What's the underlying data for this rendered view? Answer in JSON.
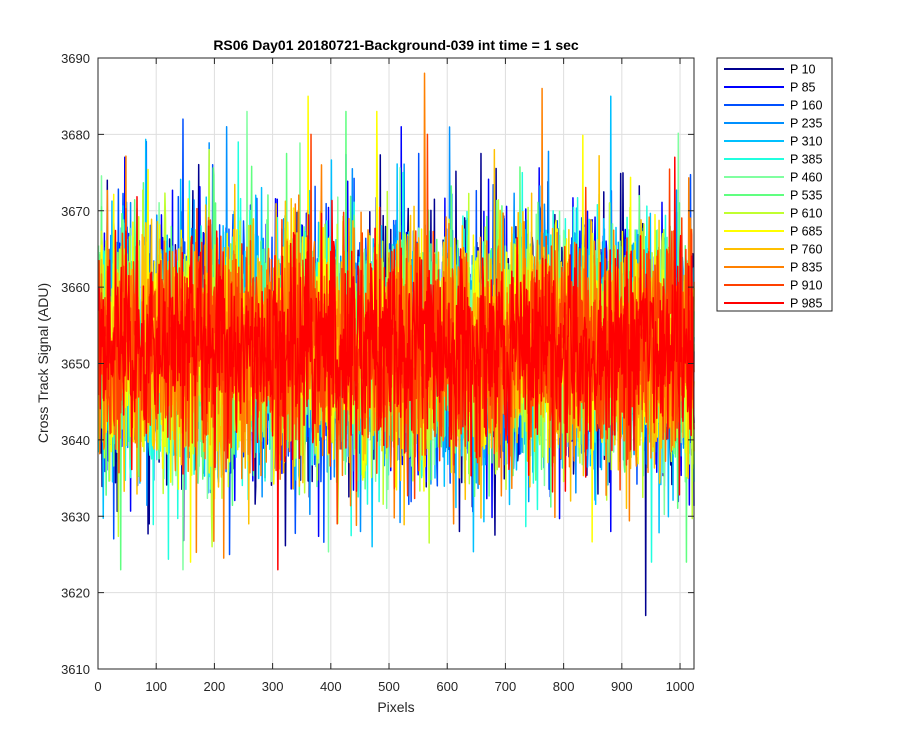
{
  "chart_data": {
    "type": "line",
    "title": "RS06 Day01 20180721-Background-039 int time = 1 sec",
    "xlabel": "Pixels",
    "ylabel": "Cross Track Signal (ADU)",
    "xlim": [
      0,
      1024
    ],
    "ylim": [
      3610,
      3690
    ],
    "xticks": [
      0,
      100,
      200,
      300,
      400,
      500,
      600,
      700,
      800,
      900,
      1000
    ],
    "yticks": [
      3610,
      3620,
      3630,
      3640,
      3650,
      3660,
      3670,
      3680,
      3690
    ],
    "grid": true,
    "legend_position": "outside-top-right",
    "series_count_points": 1024,
    "series": [
      {
        "name": "P 10",
        "color": "#00008f",
        "mean": 3652,
        "noise": 8.5,
        "peaks": [
          {
            "x": 940,
            "y": 3617
          },
          {
            "x": 620,
            "y": 3628
          },
          {
            "x": 15,
            "y": 3674
          }
        ]
      },
      {
        "name": "P 85",
        "color": "#0000ff",
        "mean": 3652,
        "noise": 8.0,
        "peaks": [
          {
            "x": 520,
            "y": 3681
          },
          {
            "x": 45,
            "y": 3677
          },
          {
            "x": 880,
            "y": 3628
          }
        ]
      },
      {
        "name": "P 160",
        "color": "#0050ff",
        "mean": 3652,
        "noise": 8.0,
        "peaks": [
          {
            "x": 145,
            "y": 3682
          },
          {
            "x": 225,
            "y": 3625
          }
        ]
      },
      {
        "name": "P 235",
        "color": "#0090ff",
        "mean": 3652,
        "noise": 8.0,
        "peaks": [
          {
            "x": 220,
            "y": 3681
          },
          {
            "x": 450,
            "y": 3628
          }
        ]
      },
      {
        "name": "P 310",
        "color": "#00c0ff",
        "mean": 3652,
        "noise": 8.0,
        "peaks": [
          {
            "x": 880,
            "y": 3685
          },
          {
            "x": 470,
            "y": 3626
          }
        ]
      },
      {
        "name": "P 385",
        "color": "#20ffdf",
        "mean": 3652,
        "noise": 8.0,
        "peaks": [
          {
            "x": 950,
            "y": 3624
          },
          {
            "x": 240,
            "y": 3679
          }
        ]
      },
      {
        "name": "P 460",
        "color": "#80ffa0",
        "mean": 3652,
        "noise": 8.0,
        "peaks": [
          {
            "x": 255,
            "y": 3683
          },
          {
            "x": 145,
            "y": 3623
          }
        ]
      },
      {
        "name": "P 535",
        "color": "#60ff80",
        "mean": 3652,
        "noise": 8.0,
        "peaks": [
          {
            "x": 425,
            "y": 3683
          },
          {
            "x": 38,
            "y": 3623
          },
          {
            "x": 1010,
            "y": 3624
          }
        ]
      },
      {
        "name": "P 610",
        "color": "#c0ff30",
        "mean": 3652,
        "noise": 7.5,
        "peaks": [
          {
            "x": 190,
            "y": 3678
          },
          {
            "x": 195,
            "y": 3626
          }
        ]
      },
      {
        "name": "P 685",
        "color": "#ffff00",
        "mean": 3652,
        "noise": 7.5,
        "peaks": [
          {
            "x": 360,
            "y": 3685
          },
          {
            "x": 478,
            "y": 3683
          },
          {
            "x": 158,
            "y": 3624
          }
        ]
      },
      {
        "name": "P 760",
        "color": "#ffc000",
        "mean": 3652,
        "noise": 7.5,
        "peaks": [
          {
            "x": 680,
            "y": 3678
          },
          {
            "x": 258,
            "y": 3629
          }
        ]
      },
      {
        "name": "P 835",
        "color": "#ff8000",
        "mean": 3652,
        "noise": 7.5,
        "peaks": [
          {
            "x": 560,
            "y": 3688
          },
          {
            "x": 762,
            "y": 3686
          },
          {
            "x": 610,
            "y": 3629
          }
        ]
      },
      {
        "name": "P 910",
        "color": "#ff4000",
        "mean": 3652,
        "noise": 7.0,
        "peaks": [
          {
            "x": 365,
            "y": 3680
          },
          {
            "x": 565,
            "y": 3680
          },
          {
            "x": 410,
            "y": 3629
          }
        ]
      },
      {
        "name": "P 985",
        "color": "#ff0000",
        "mean": 3652,
        "noise": 6.5,
        "peaks": [
          {
            "x": 308,
            "y": 3623
          },
          {
            "x": 990,
            "y": 3677
          }
        ]
      }
    ]
  }
}
